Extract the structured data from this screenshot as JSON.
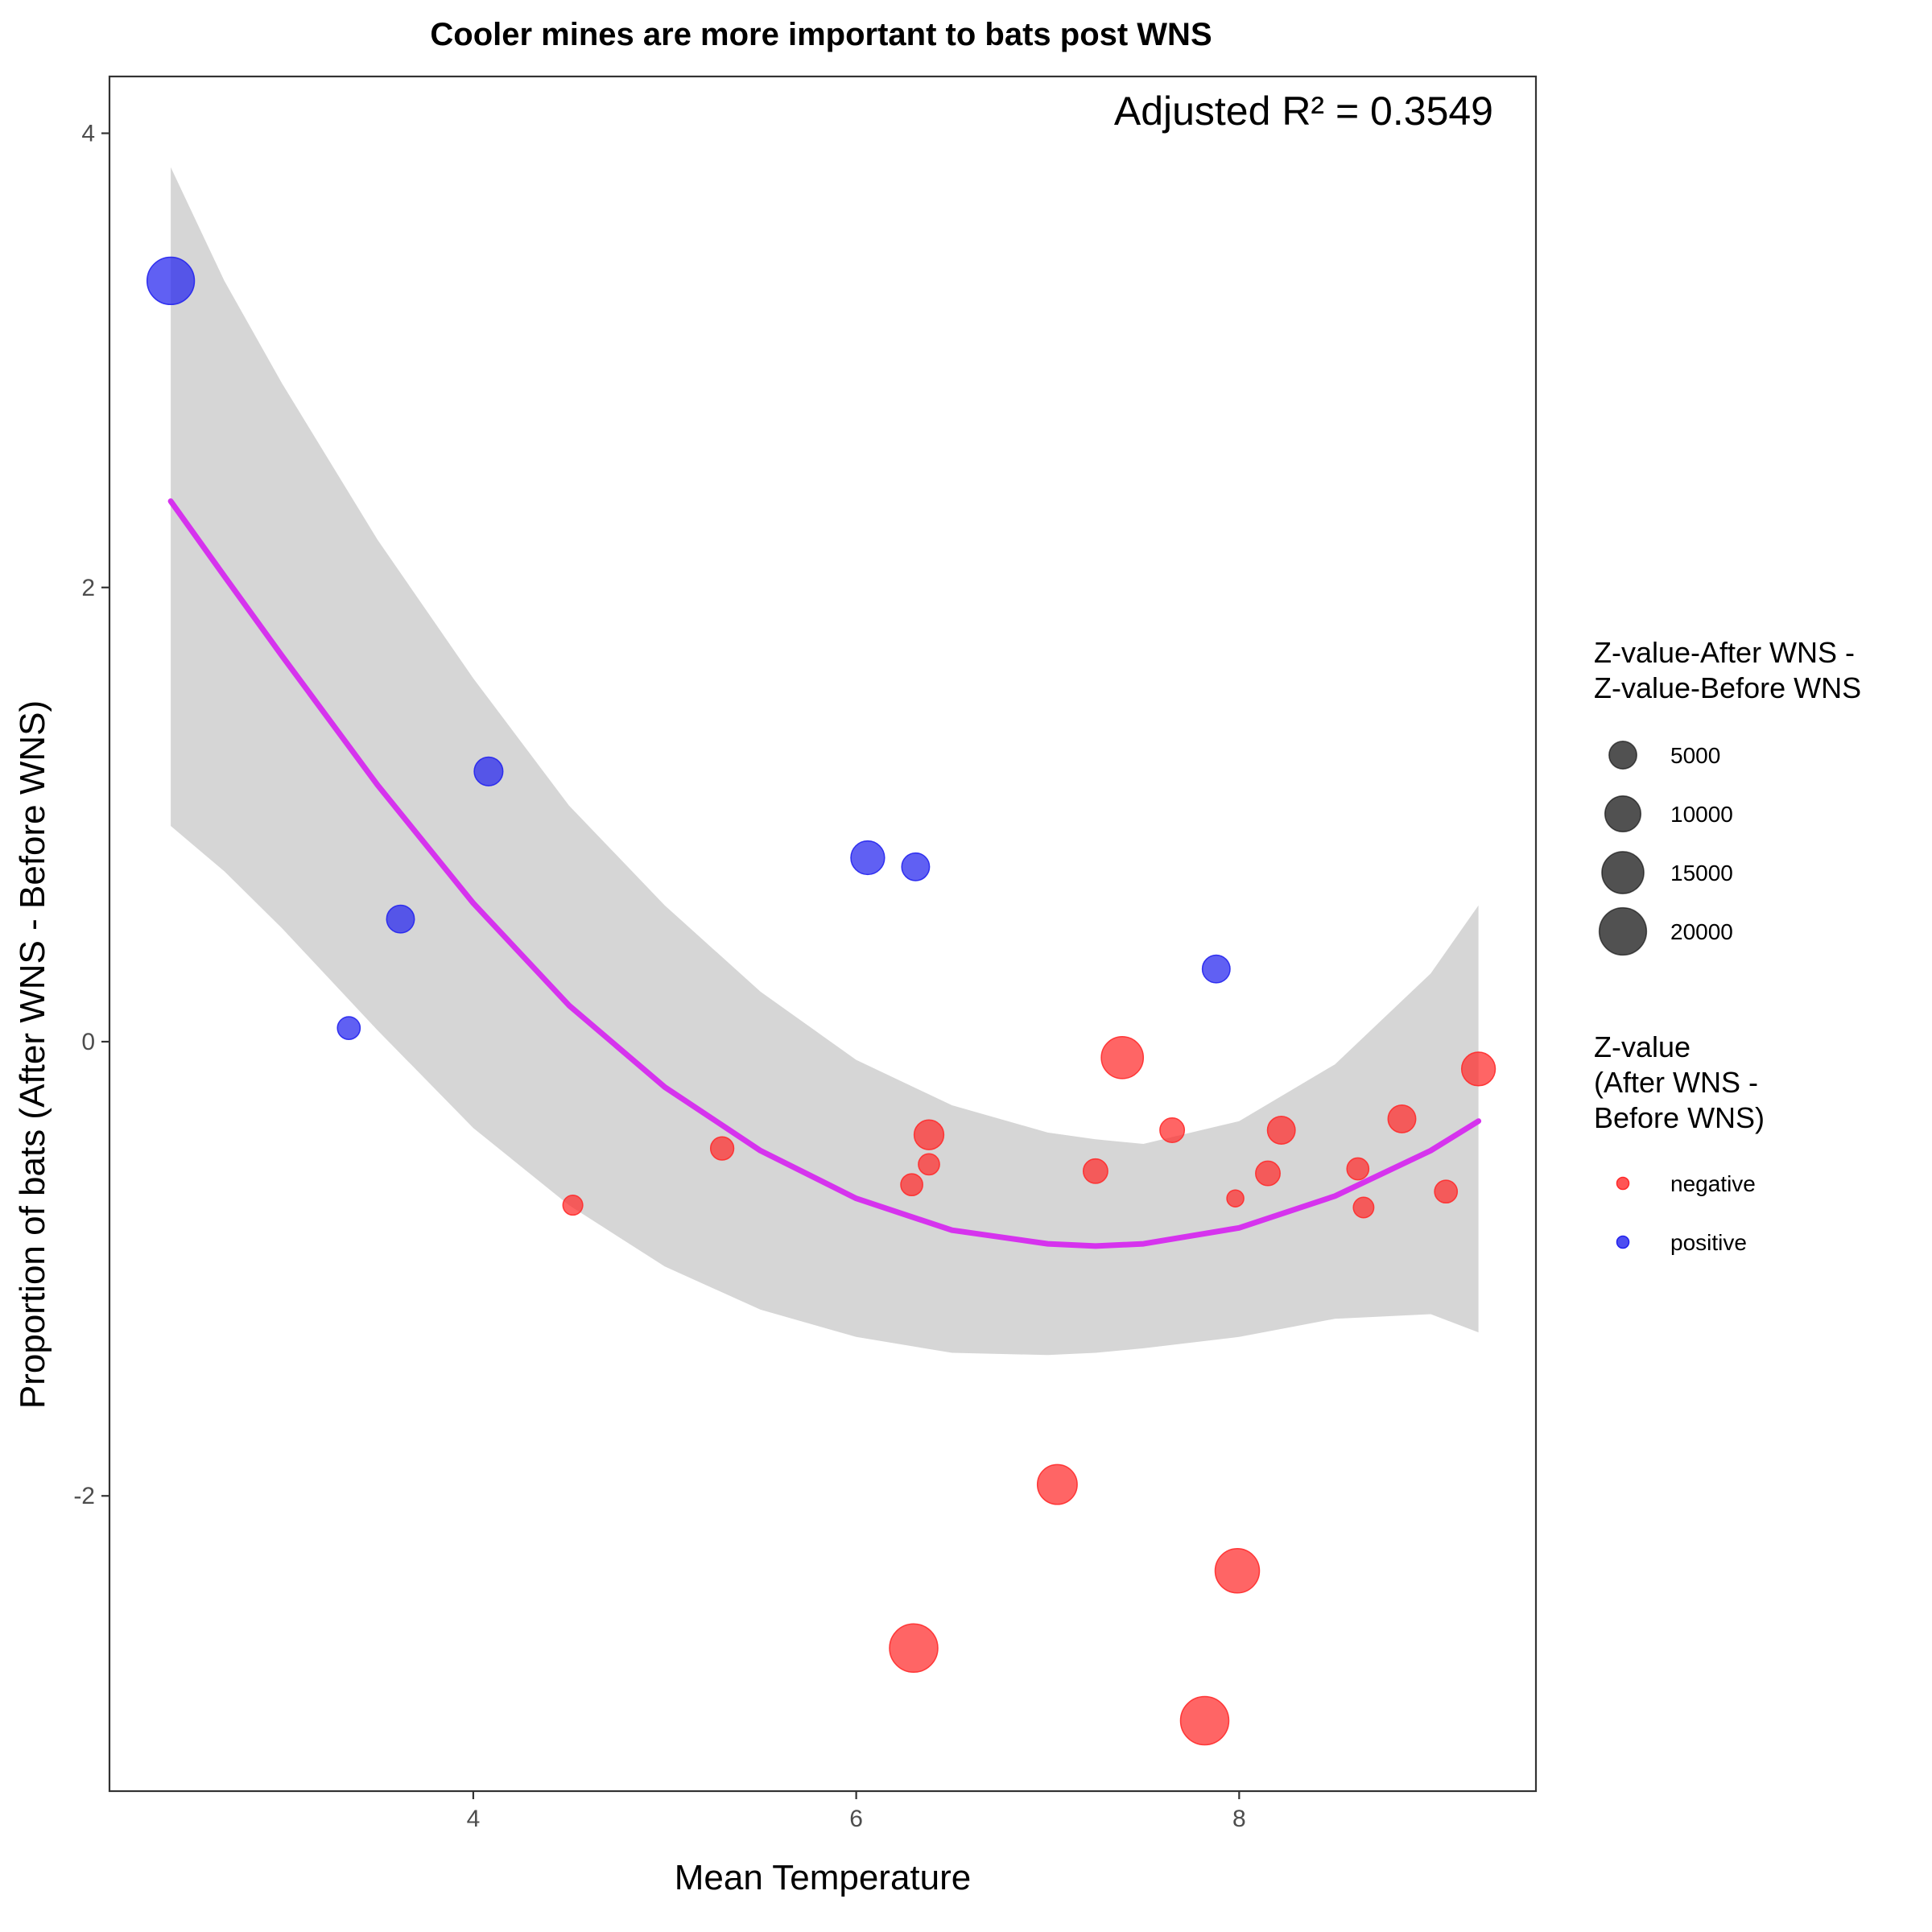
{
  "chart_data": {
    "type": "scatter",
    "title": "Cooler mines are more important to bats post WNS",
    "annotation": "Adjusted R² = 0.3549",
    "xlabel": "Mean Temperature",
    "ylabel": "Proportion of bats (After WNS - Before WNS)",
    "xlim": [
      2.1,
      9.55
    ],
    "ylim": [
      -3.3,
      4.25
    ],
    "x_ticks": [
      4,
      6,
      8
    ],
    "y_ticks": [
      -2,
      0,
      2,
      4
    ],
    "x_tick_labels": [
      "4",
      "6",
      "8"
    ],
    "y_tick_labels": [
      "-2",
      "0",
      "2",
      "4"
    ],
    "grid": false,
    "legend_position": "right",
    "colors": {
      "negative": "#ff2a2a",
      "positive": "#2222ee",
      "fit_line": "#d633ee",
      "ribbon": "#cccccc",
      "legend_size": "#333333"
    },
    "legend": {
      "size_title": [
        "Z-value-After WNS -",
        "Z-value-Before WNS"
      ],
      "size_entries": [
        {
          "label": "5000",
          "value": 5000
        },
        {
          "label": "10000",
          "value": 10000
        },
        {
          "label": "15000",
          "value": 15000
        },
        {
          "label": "20000",
          "value": 20000
        }
      ],
      "color_title": [
        "Z-value",
        "(After WNS -",
        "Before WNS)"
      ],
      "color_entries": [
        {
          "label": "negative",
          "key": "negative"
        },
        {
          "label": "positive",
          "key": "positive"
        }
      ]
    },
    "points": [
      {
        "x": 2.42,
        "y": 3.35,
        "size": 20000,
        "group": "positive"
      },
      {
        "x": 4.08,
        "y": 1.19,
        "size": 5500,
        "group": "positive"
      },
      {
        "x": 3.62,
        "y": 0.54,
        "size": 5000,
        "group": "positive"
      },
      {
        "x": 3.35,
        "y": 0.06,
        "size": 2800,
        "group": "positive"
      },
      {
        "x": 6.06,
        "y": 0.81,
        "size": 8500,
        "group": "positive"
      },
      {
        "x": 6.31,
        "y": 0.77,
        "size": 5000,
        "group": "positive"
      },
      {
        "x": 7.88,
        "y": 0.32,
        "size": 5000,
        "group": "positive"
      },
      {
        "x": 7.39,
        "y": -0.07,
        "size": 15000,
        "group": "negative"
      },
      {
        "x": 9.25,
        "y": -0.12,
        "size": 8500,
        "group": "negative"
      },
      {
        "x": 8.85,
        "y": -0.34,
        "size": 5000,
        "group": "negative"
      },
      {
        "x": 7.65,
        "y": -0.39,
        "size": 3500,
        "group": "negative"
      },
      {
        "x": 8.22,
        "y": -0.39,
        "size": 5000,
        "group": "negative"
      },
      {
        "x": 6.38,
        "y": -0.41,
        "size": 6000,
        "group": "negative"
      },
      {
        "x": 5.3,
        "y": -0.47,
        "size": 3000,
        "group": "negative"
      },
      {
        "x": 6.38,
        "y": -0.54,
        "size": 2200,
        "group": "negative"
      },
      {
        "x": 7.25,
        "y": -0.57,
        "size": 3500,
        "group": "negative"
      },
      {
        "x": 8.15,
        "y": -0.58,
        "size": 3500,
        "group": "negative"
      },
      {
        "x": 8.62,
        "y": -0.56,
        "size": 2500,
        "group": "negative"
      },
      {
        "x": 6.29,
        "y": -0.63,
        "size": 2500,
        "group": "negative"
      },
      {
        "x": 9.08,
        "y": -0.66,
        "size": 2800,
        "group": "negative"
      },
      {
        "x": 7.98,
        "y": -0.69,
        "size": 1000,
        "group": "negative"
      },
      {
        "x": 4.52,
        "y": -0.72,
        "size": 1800,
        "group": "negative"
      },
      {
        "x": 8.65,
        "y": -0.73,
        "size": 2000,
        "group": "negative"
      },
      {
        "x": 7.05,
        "y": -1.95,
        "size": 13000,
        "group": "negative"
      },
      {
        "x": 7.99,
        "y": -2.33,
        "size": 17000,
        "group": "negative"
      },
      {
        "x": 6.3,
        "y": -2.67,
        "size": 21000,
        "group": "negative"
      },
      {
        "x": 7.82,
        "y": -2.99,
        "size": 21000,
        "group": "negative"
      }
    ],
    "fit": {
      "x": [
        2.42,
        2.7,
        3.0,
        3.5,
        4.0,
        4.5,
        5.0,
        5.5,
        6.0,
        6.5,
        7.0,
        7.25,
        7.5,
        8.0,
        8.5,
        9.0,
        9.25
      ],
      "y": [
        2.38,
        2.05,
        1.7,
        1.13,
        0.61,
        0.16,
        -0.2,
        -0.48,
        -0.69,
        -0.83,
        -0.89,
        -0.9,
        -0.89,
        -0.82,
        -0.68,
        -0.48,
        -0.35
      ],
      "lower": [
        0.95,
        0.75,
        0.5,
        0.05,
        -0.38,
        -0.72,
        -0.99,
        -1.18,
        -1.3,
        -1.37,
        -1.38,
        -1.37,
        -1.35,
        -1.3,
        -1.22,
        -1.2,
        -1.28
      ],
      "upper": [
        3.85,
        3.35,
        2.9,
        2.21,
        1.6,
        1.04,
        0.6,
        0.22,
        -0.08,
        -0.28,
        -0.4,
        -0.43,
        -0.45,
        -0.35,
        -0.1,
        0.3,
        0.6
      ]
    }
  }
}
